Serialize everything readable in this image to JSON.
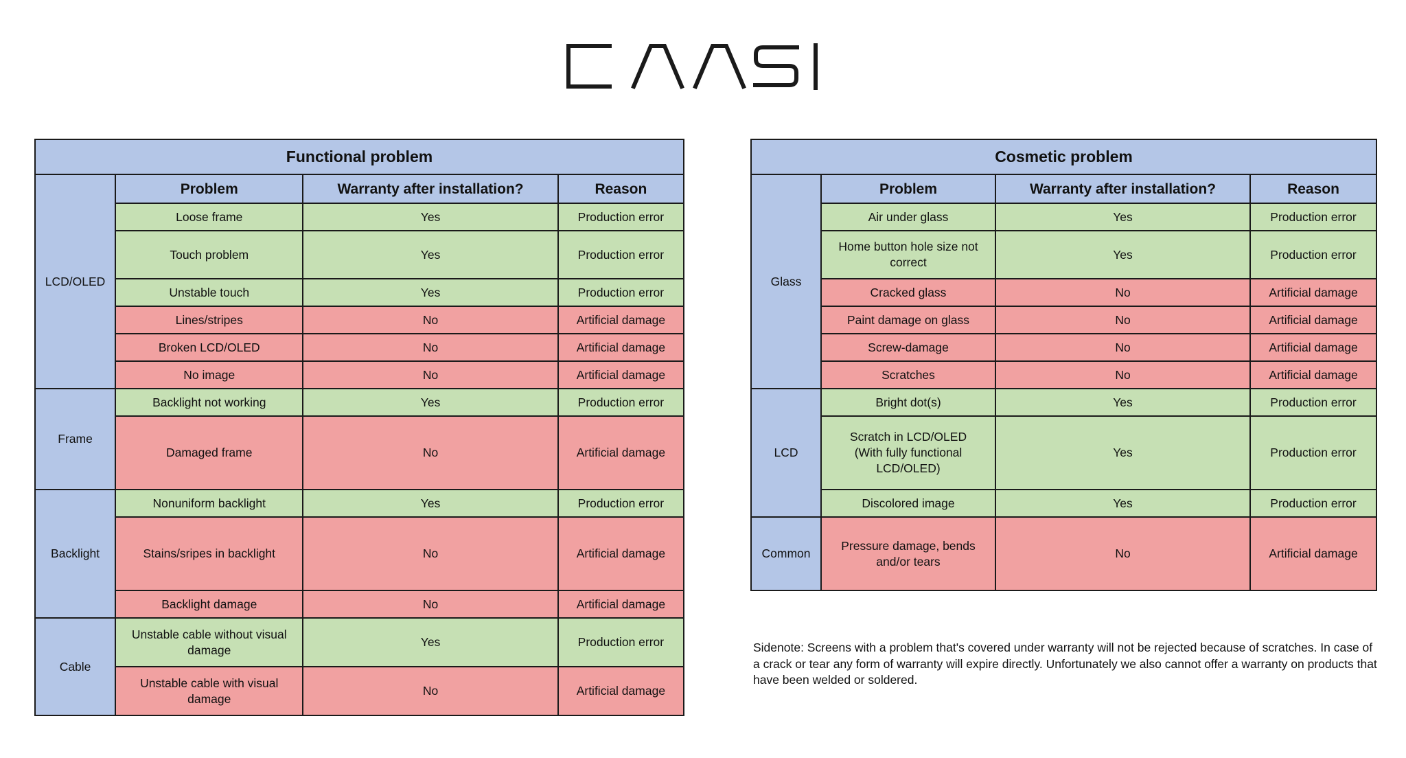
{
  "brand": {
    "logo_text": "CAASI",
    "logo_color": "#1a1a1a"
  },
  "colors": {
    "header_blue": "#b4c6e7",
    "yes_green": "#c6e0b4",
    "no_red": "#f1a1a1"
  },
  "functional": {
    "title": "Functional problem",
    "headers": {
      "problem": "Problem",
      "warranty": "Warranty after installation?",
      "reason": "Reason"
    },
    "groups": [
      {
        "category": "LCD/OLED",
        "rows": [
          {
            "problem": "Loose frame",
            "warranty": "Yes",
            "reason": "Production error"
          },
          {
            "problem": "Touch problem",
            "warranty": "Yes",
            "reason": "Production error"
          },
          {
            "problem": "Unstable touch",
            "warranty": "Yes",
            "reason": "Production error"
          },
          {
            "problem": "Lines/stripes",
            "warranty": "No",
            "reason": "Artificial damage"
          },
          {
            "problem": "Broken LCD/OLED",
            "warranty": "No",
            "reason": "Artificial damage"
          },
          {
            "problem": "No image",
            "warranty": "No",
            "reason": "Artificial damage"
          }
        ]
      },
      {
        "category": "Frame",
        "rows": [
          {
            "problem": "Backlight not working",
            "warranty": "Yes",
            "reason": "Production error"
          },
          {
            "problem": "Damaged frame",
            "warranty": "No",
            "reason": "Artificial damage"
          }
        ]
      },
      {
        "category": "Backlight",
        "rows": [
          {
            "problem": "Nonuniform backlight",
            "warranty": "Yes",
            "reason": "Production error"
          },
          {
            "problem": "Stains/sripes in backlight",
            "warranty": "No",
            "reason": "Artificial damage"
          },
          {
            "problem": "Backlight damage",
            "warranty": "No",
            "reason": "Artificial damage"
          }
        ]
      },
      {
        "category": "Cable",
        "rows": [
          {
            "problem": "Unstable cable without visual damage",
            "warranty": "Yes",
            "reason": "Production error"
          },
          {
            "problem": "Unstable cable with visual damage",
            "warranty": "No",
            "reason": "Artificial damage"
          }
        ]
      }
    ]
  },
  "cosmetic": {
    "title": "Cosmetic problem",
    "headers": {
      "problem": "Problem",
      "warranty": "Warranty after installation?",
      "reason": "Reason"
    },
    "groups": [
      {
        "category": "Glass",
        "rows": [
          {
            "problem": "Air under glass",
            "warranty": "Yes",
            "reason": "Production error"
          },
          {
            "problem": "Home button hole size not correct",
            "warranty": "Yes",
            "reason": "Production error"
          },
          {
            "problem": "Cracked glass",
            "warranty": "No",
            "reason": "Artificial damage"
          },
          {
            "problem": "Paint damage on glass",
            "warranty": "No",
            "reason": "Artificial damage"
          },
          {
            "problem": "Screw-damage",
            "warranty": "No",
            "reason": "Artificial damage"
          },
          {
            "problem": "Scratches",
            "warranty": "No",
            "reason": "Artificial damage"
          }
        ]
      },
      {
        "category": "LCD",
        "rows": [
          {
            "problem": "Bright dot(s)",
            "warranty": "Yes",
            "reason": "Production error"
          },
          {
            "problem": "Scratch in LCD/OLED (With fully functional LCD/OLED)",
            "warranty": "Yes",
            "reason": "Production error"
          },
          {
            "problem": "Discolored image",
            "warranty": "Yes",
            "reason": "Production error"
          }
        ]
      },
      {
        "category": "Common",
        "rows": [
          {
            "problem": "Pressure damage, bends and/or tears",
            "warranty": "No",
            "reason": "Artificial damage"
          }
        ]
      }
    ]
  },
  "sidenote": "Sidenote: Screens with a problem that's covered under warranty will not be rejected because of scratches. In case of a crack or tear any form of warranty will expire directly. Unfortunately we also cannot offer a warranty on products that have been welded or soldered."
}
